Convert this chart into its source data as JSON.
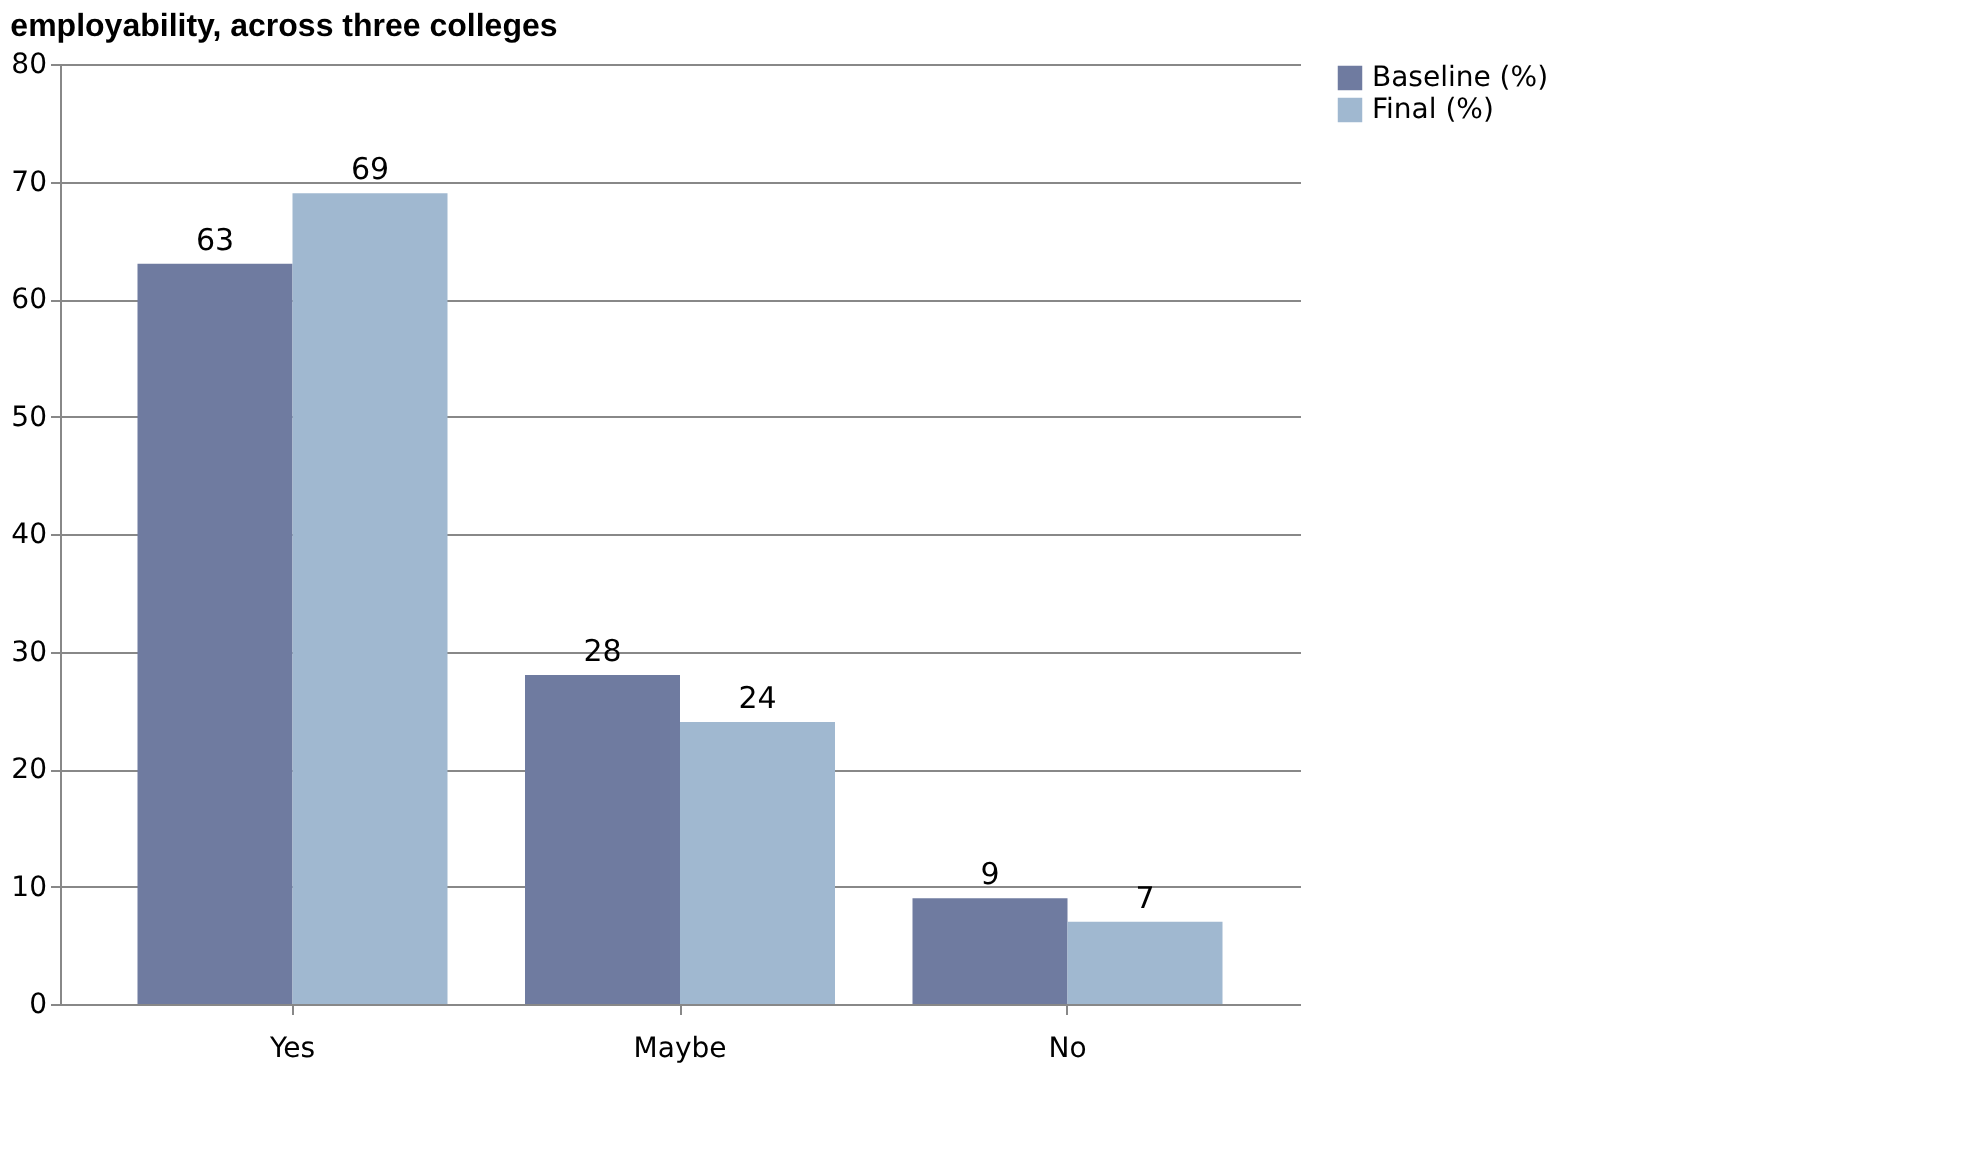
{
  "chart_data": {
    "type": "bar",
    "title": "employability, across three colleges",
    "categories": [
      "Yes",
      "Maybe",
      "No"
    ],
    "series": [
      {
        "name": "Baseline (%)",
        "color": "#6f7ba0",
        "values": [
          63,
          28,
          9
        ]
      },
      {
        "name": "Final (%)",
        "color": "#a0b8d0",
        "values": [
          69,
          24,
          7
        ]
      }
    ],
    "ylim": [
      0,
      80
    ],
    "yticks": [
      0,
      10,
      20,
      30,
      40,
      50,
      60,
      70,
      80
    ],
    "grid": "y",
    "legend": "right",
    "data_labels": true
  }
}
